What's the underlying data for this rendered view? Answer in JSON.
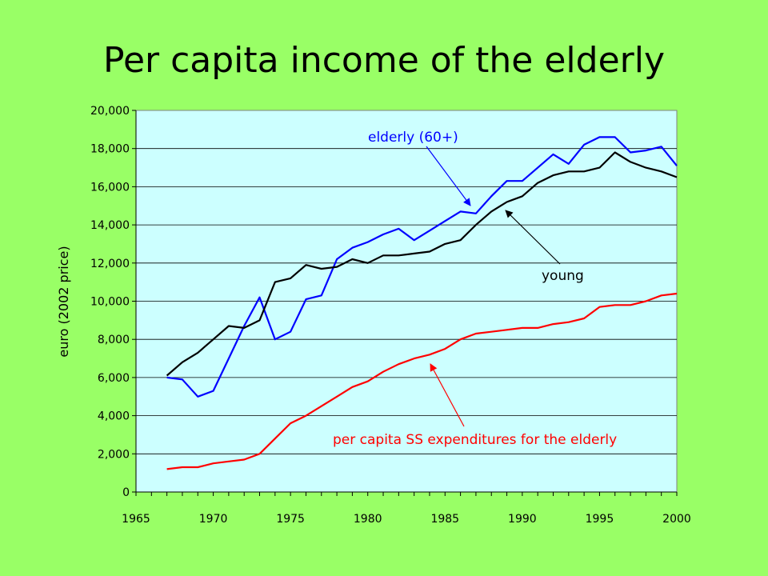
{
  "slide": {
    "title": "Per capita income of the elderly"
  },
  "chart_data": {
    "type": "line",
    "title": "Per capita income of the elderly",
    "xlabel": "",
    "ylabel": "euro (2002 price)",
    "xlim": [
      1965,
      2000
    ],
    "ylim": [
      0,
      20000
    ],
    "x_ticks": [
      1965,
      1970,
      1975,
      1980,
      1985,
      1990,
      1995,
      2000
    ],
    "y_ticks": [
      0,
      2000,
      4000,
      6000,
      8000,
      10000,
      12000,
      14000,
      16000,
      18000,
      20000
    ],
    "y_tick_labels": [
      "0",
      "2,000",
      "4,000",
      "6,000",
      "8,000",
      "10,000",
      "12,000",
      "14,000",
      "16,000",
      "18,000",
      "20,000"
    ],
    "grid": "horizontal",
    "x": [
      1967,
      1968,
      1969,
      1970,
      1971,
      1972,
      1973,
      1974,
      1975,
      1976,
      1977,
      1978,
      1979,
      1980,
      1981,
      1982,
      1983,
      1984,
      1985,
      1986,
      1987,
      1988,
      1989,
      1990,
      1991,
      1992,
      1993,
      1994,
      1995,
      1996,
      1997,
      1998,
      1999,
      2000
    ],
    "series": [
      {
        "name": "elderly (60+)",
        "color": "#0000ff",
        "values": [
          6000,
          5900,
          5000,
          5300,
          7000,
          8700,
          10200,
          8000,
          8400,
          10100,
          10300,
          12200,
          12800,
          13100,
          13500,
          13800,
          13200,
          13700,
          14200,
          14700,
          14600,
          15500,
          16300,
          16300,
          17000,
          17700,
          17200,
          18200,
          18600,
          18600,
          17800,
          17900,
          18100,
          17100
        ]
      },
      {
        "name": "young",
        "color": "#000000",
        "values": [
          6100,
          6800,
          7300,
          8000,
          8700,
          8600,
          9000,
          11000,
          11200,
          11900,
          11700,
          11800,
          12200,
          12000,
          12400,
          12400,
          12500,
          12600,
          13000,
          13200,
          14000,
          14700,
          15200,
          15500,
          16200,
          16600,
          16800,
          16800,
          17000,
          17800,
          17300,
          17000,
          16800,
          16500
        ]
      },
      {
        "name": "per capita SS expenditures for the elderly",
        "color": "#ff0000",
        "values": [
          1200,
          1300,
          1300,
          1500,
          1600,
          1700,
          2000,
          2800,
          3600,
          4000,
          4500,
          5000,
          5500,
          5800,
          6300,
          6700,
          7000,
          7200,
          7500,
          8000,
          8300,
          8400,
          8500,
          8600,
          8600,
          8800,
          8900,
          9100,
          9700,
          9800,
          9800,
          10000,
          10300,
          10400
        ]
      }
    ],
    "annotations": [
      {
        "text": "elderly (60+)",
        "color": "#0000ff"
      },
      {
        "text": "young",
        "color": "#000000"
      },
      {
        "text": "per capita SS expenditures for the elderly",
        "color": "#ff0000"
      }
    ]
  }
}
